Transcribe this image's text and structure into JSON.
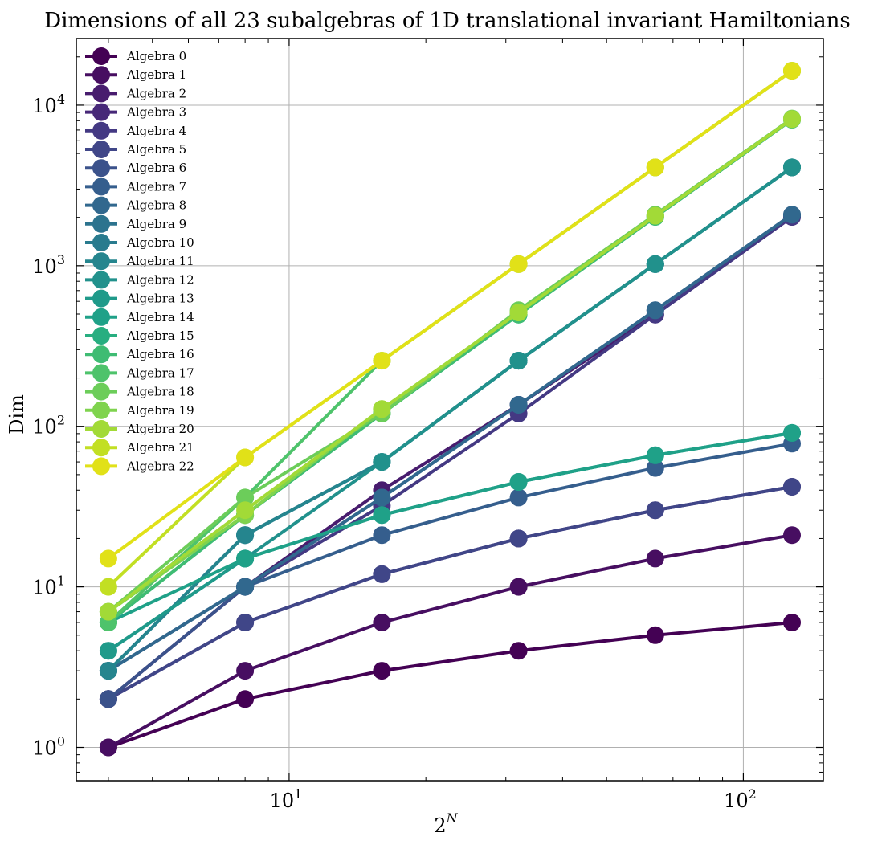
{
  "chart_data": {
    "type": "line",
    "title": "Dimensions of all 23 subalgebras of 1D translational invariant Hamiltonians",
    "xlabel": "2",
    "xlabel_sup": "N",
    "ylabel": "Dim",
    "xscale": "log",
    "yscale": "log",
    "xlim": [
      3.4,
      150
    ],
    "ylim": [
      0.62,
      26000
    ],
    "grid": true,
    "legend_position": "top-left",
    "x": [
      4,
      8,
      16,
      32,
      64,
      128
    ],
    "x_ticks": [
      {
        "value": 10,
        "base": "10",
        "exp": "1"
      },
      {
        "value": 100,
        "base": "10",
        "exp": "2"
      }
    ],
    "y_ticks": [
      {
        "value": 1,
        "base": "10",
        "exp": "0"
      },
      {
        "value": 10,
        "base": "10",
        "exp": "1"
      },
      {
        "value": 100,
        "base": "10",
        "exp": "2"
      },
      {
        "value": 1000,
        "base": "10",
        "exp": "3"
      },
      {
        "value": 10000,
        "base": "10",
        "exp": "4"
      }
    ],
    "series": [
      {
        "name": "Algebra 0",
        "color": "#440154",
        "values": [
          1,
          2,
          3,
          4,
          5,
          6
        ]
      },
      {
        "name": "Algebra 1",
        "color": "#470e61",
        "values": [
          1,
          3,
          6,
          10,
          15,
          21
        ]
      },
      {
        "name": "Algebra 2",
        "color": "#481c6e",
        "values": [
          2,
          10,
          40,
          136,
          496,
          2016
        ]
      },
      {
        "name": "Algebra 3",
        "color": "#472878",
        "values": [
          2,
          6,
          12,
          20,
          30,
          42
        ]
      },
      {
        "name": "Algebra 4",
        "color": "#443983",
        "values": [
          2,
          10,
          32,
          120,
          496,
          2016
        ]
      },
      {
        "name": "Algebra 5",
        "color": "#404688",
        "values": [
          2,
          6,
          12,
          20,
          30,
          42
        ]
      },
      {
        "name": "Algebra 6",
        "color": "#3b528b",
        "values": [
          2,
          10,
          36,
          136,
          528,
          2080
        ]
      },
      {
        "name": "Algebra 7",
        "color": "#355e8d",
        "values": [
          3,
          10,
          21,
          36,
          55,
          78
        ]
      },
      {
        "name": "Algebra 8",
        "color": "#31688e",
        "values": [
          3,
          10,
          36,
          136,
          528,
          2080
        ]
      },
      {
        "name": "Algebra 9",
        "color": "#2c738e",
        "values": [
          3,
          21,
          60,
          256,
          1024,
          4096
        ]
      },
      {
        "name": "Algebra 10",
        "color": "#297b8e",
        "values": [
          3,
          21,
          60,
          256,
          1024,
          4096
        ]
      },
      {
        "name": "Algebra 11",
        "color": "#25858e",
        "values": [
          3,
          21,
          60,
          256,
          1024,
          4096
        ]
      },
      {
        "name": "Algebra 12",
        "color": "#21918c",
        "values": [
          4,
          15,
          60,
          256,
          1024,
          4096
        ]
      },
      {
        "name": "Algebra 13",
        "color": "#1f9a8a",
        "values": [
          4,
          15,
          28,
          45,
          66,
          91
        ]
      },
      {
        "name": "Algebra 14",
        "color": "#1fa188",
        "values": [
          6,
          15,
          28,
          45,
          66,
          91
        ]
      },
      {
        "name": "Algebra 15",
        "color": "#28ae80",
        "values": [
          6,
          28,
          120,
          496,
          2016,
          8128
        ]
      },
      {
        "name": "Algebra 16",
        "color": "#3fbc73",
        "values": [
          6,
          28,
          120,
          496,
          2016,
          8128
        ]
      },
      {
        "name": "Algebra 17",
        "color": "#4ec36b",
        "values": [
          6,
          36,
          256,
          1024,
          4096,
          16384
        ]
      },
      {
        "name": "Algebra 18",
        "color": "#6ccd5a",
        "values": [
          7,
          36,
          120,
          528,
          2080,
          8256
        ]
      },
      {
        "name": "Algebra 19",
        "color": "#7fd34e",
        "values": [
          7,
          28,
          128,
          512,
          2048,
          8192
        ]
      },
      {
        "name": "Algebra 20",
        "color": "#a2da37",
        "values": [
          7,
          30,
          128,
          512,
          2048,
          8192
        ]
      },
      {
        "name": "Algebra 21",
        "color": "#c2df23",
        "values": [
          10,
          64,
          256,
          1024,
          4096,
          16384
        ]
      },
      {
        "name": "Algebra 22",
        "color": "#e1e118",
        "values": [
          15,
          64,
          256,
          1024,
          4096,
          16384
        ]
      }
    ]
  }
}
